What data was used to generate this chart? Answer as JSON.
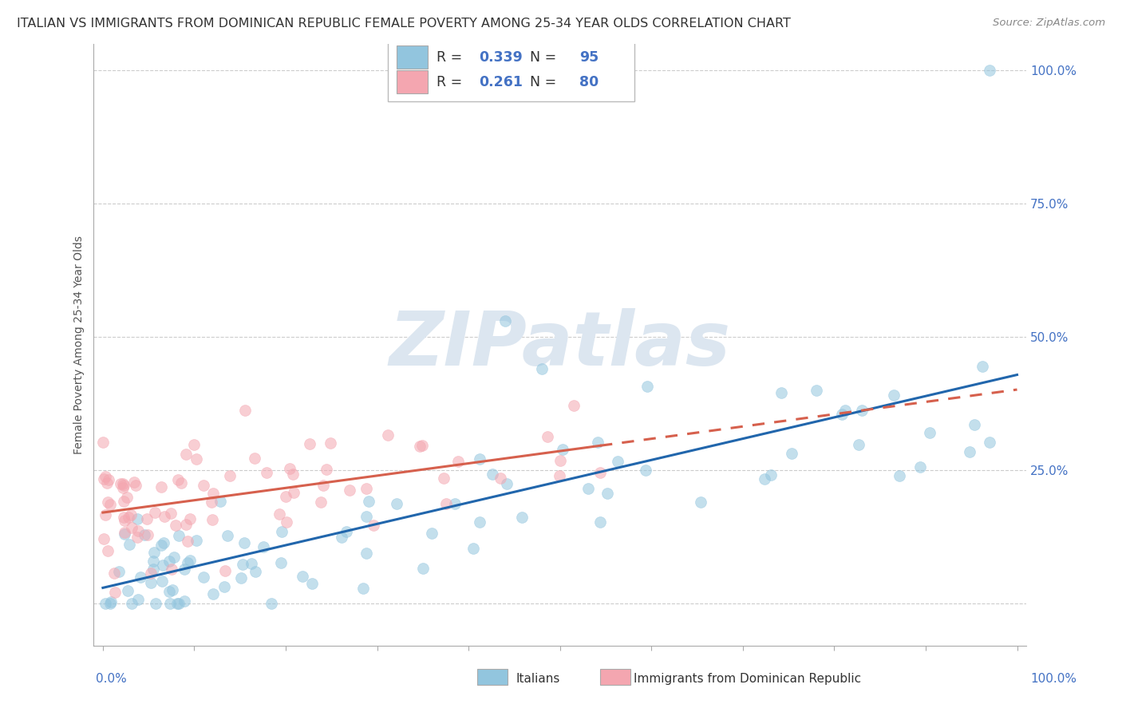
{
  "title": "ITALIAN VS IMMIGRANTS FROM DOMINICAN REPUBLIC FEMALE POVERTY AMONG 25-34 YEAR OLDS CORRELATION CHART",
  "source": "Source: ZipAtlas.com",
  "ylabel": "Female Poverty Among 25-34 Year Olds",
  "ytick_labels": [
    "",
    "25.0%",
    "50.0%",
    "75.0%",
    "100.0%"
  ],
  "ytick_values": [
    0.0,
    0.25,
    0.5,
    0.75,
    1.0
  ],
  "xlim": [
    0.0,
    1.0
  ],
  "ylim": [
    -0.08,
    1.05
  ],
  "italian_R": 0.339,
  "italian_N": 95,
  "dominican_R": 0.261,
  "dominican_N": 80,
  "italian_color": "#92c5de",
  "dominican_color": "#f4a6b0",
  "italian_line_color": "#2166ac",
  "dominican_line_color": "#d6604d",
  "legend_text_color": "#4472c4",
  "background_color": "#ffffff",
  "grid_color": "#cccccc",
  "watermark": "ZIPatlas",
  "watermark_color": "#dce6f0",
  "title_fontsize": 11.5,
  "source_fontsize": 9.5,
  "axis_label_fontsize": 10,
  "tick_fontsize": 11,
  "scatter_size": 100,
  "scatter_alpha": 0.55
}
